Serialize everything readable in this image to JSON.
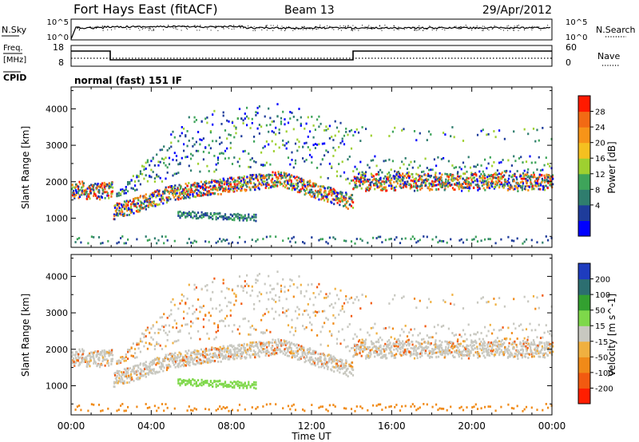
{
  "header": {
    "title": "Fort Hays East (fitACF)",
    "beam": "Beam 13",
    "date": "29/Apr/2012"
  },
  "noise_panel": {
    "left_label": "N.Sky",
    "left_ticks": [
      "10^5",
      "10^0"
    ],
    "right_label": "N.Search",
    "right_ticks": [
      "10^5",
      "10^0"
    ]
  },
  "freq_panel": {
    "left_label_1": "Freq.",
    "left_label_2": "[MHz]",
    "left_ticks": [
      "18",
      "8"
    ],
    "right_label": "Nave",
    "right_ticks": [
      "60",
      "0"
    ],
    "cpid_label": "CPID",
    "cpid_text": "normal (fast) 151 IF"
  },
  "chart_data": [
    {
      "type": "heatmap",
      "name": "power",
      "ylabel": "Slant Range [km]",
      "y_ticks": [
        1000,
        2000,
        3000,
        4000
      ],
      "ylim": [
        200,
        4600
      ],
      "colorbar_label": "Power [dB]",
      "colorbar_ticks": [
        4,
        8,
        12,
        16,
        20,
        24,
        28
      ],
      "colorbar_range": [
        0,
        32
      ],
      "colors": [
        "#0000ff",
        "#1e3c9b",
        "#2f7d6e",
        "#3ea45a",
        "#9ed030",
        "#f5c020",
        "#f79418",
        "#f26a14",
        "#ff1a00"
      ]
    },
    {
      "type": "heatmap",
      "name": "velocity",
      "ylabel": "Slant Range [km]",
      "y_ticks": [
        1000,
        2000,
        3000,
        4000
      ],
      "ylim": [
        200,
        4600
      ],
      "colorbar_label": "Velocity [m s^-1]",
      "colorbar_ticks": [
        200,
        100,
        50,
        15,
        -15,
        -50,
        -100,
        -200
      ],
      "colors": [
        "#1e3cbe",
        "#2c6e70",
        "#33a030",
        "#7ed84a",
        "#c8c8c0",
        "#f0b040",
        "#f08a18",
        "#f25a10",
        "#ff1e00"
      ]
    }
  ],
  "time_axis": {
    "tick_labels": [
      "00:00",
      "04:00",
      "08:00",
      "12:00",
      "16:00",
      "20:00",
      "00:00"
    ],
    "xlabel": "Time UT"
  }
}
